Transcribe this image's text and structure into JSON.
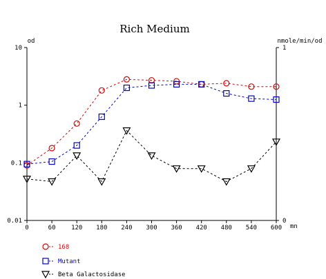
{
  "chart_data": {
    "type": "line",
    "title": "Rich Medium",
    "x_unit_label": "mn",
    "y_left_label": "od",
    "y_right_label": "nmole/min/od",
    "x_ticks": [
      0,
      60,
      120,
      180,
      240,
      300,
      360,
      420,
      480,
      540,
      600
    ],
    "xlim": [
      0,
      600
    ],
    "y_left_scale": "log",
    "y_left_lim": [
      0.01,
      10
    ],
    "y_left_ticks": [
      {
        "value": 0.01,
        "label": "0.01"
      },
      {
        "value": 0.1,
        "label": "0.1"
      },
      {
        "value": 1,
        "label": "1"
      },
      {
        "value": 10,
        "label": "10"
      }
    ],
    "y_right_lim": [
      0,
      1
    ],
    "y_right_ticks": [
      {
        "value": 0,
        "label": "0"
      },
      {
        "value": 1,
        "label": "1"
      }
    ],
    "legend_position": "bottom-left",
    "series": [
      {
        "name": "168",
        "axis": "left",
        "marker": "circle",
        "color": "#dd0000",
        "x": [
          0,
          60,
          120,
          180,
          240,
          300,
          360,
          420,
          480,
          540,
          600
        ],
        "y": [
          0.09,
          0.18,
          0.48,
          1.8,
          2.8,
          2.7,
          2.6,
          2.3,
          2.4,
          2.1,
          2.1
        ]
      },
      {
        "name": "Mutant",
        "axis": "left",
        "marker": "square",
        "color": "#0000cc",
        "x": [
          0,
          60,
          120,
          180,
          240,
          300,
          360,
          420,
          480,
          540,
          600
        ],
        "y": [
          0.095,
          0.105,
          0.2,
          0.63,
          2.0,
          2.2,
          2.3,
          2.3,
          1.6,
          1.3,
          1.25
        ]
      },
      {
        "name": "Beta Galactosidase",
        "axis": "right",
        "marker": "triangle-down",
        "color": "#000000",
        "x": [
          0,
          60,
          120,
          180,
          240,
          300,
          360,
          420,
          480,
          540,
          600
        ],
        "y": [
          0.24,
          0.225,
          0.375,
          0.225,
          0.52,
          0.375,
          0.3,
          0.3,
          0.225,
          0.3,
          0.455
        ]
      }
    ]
  }
}
